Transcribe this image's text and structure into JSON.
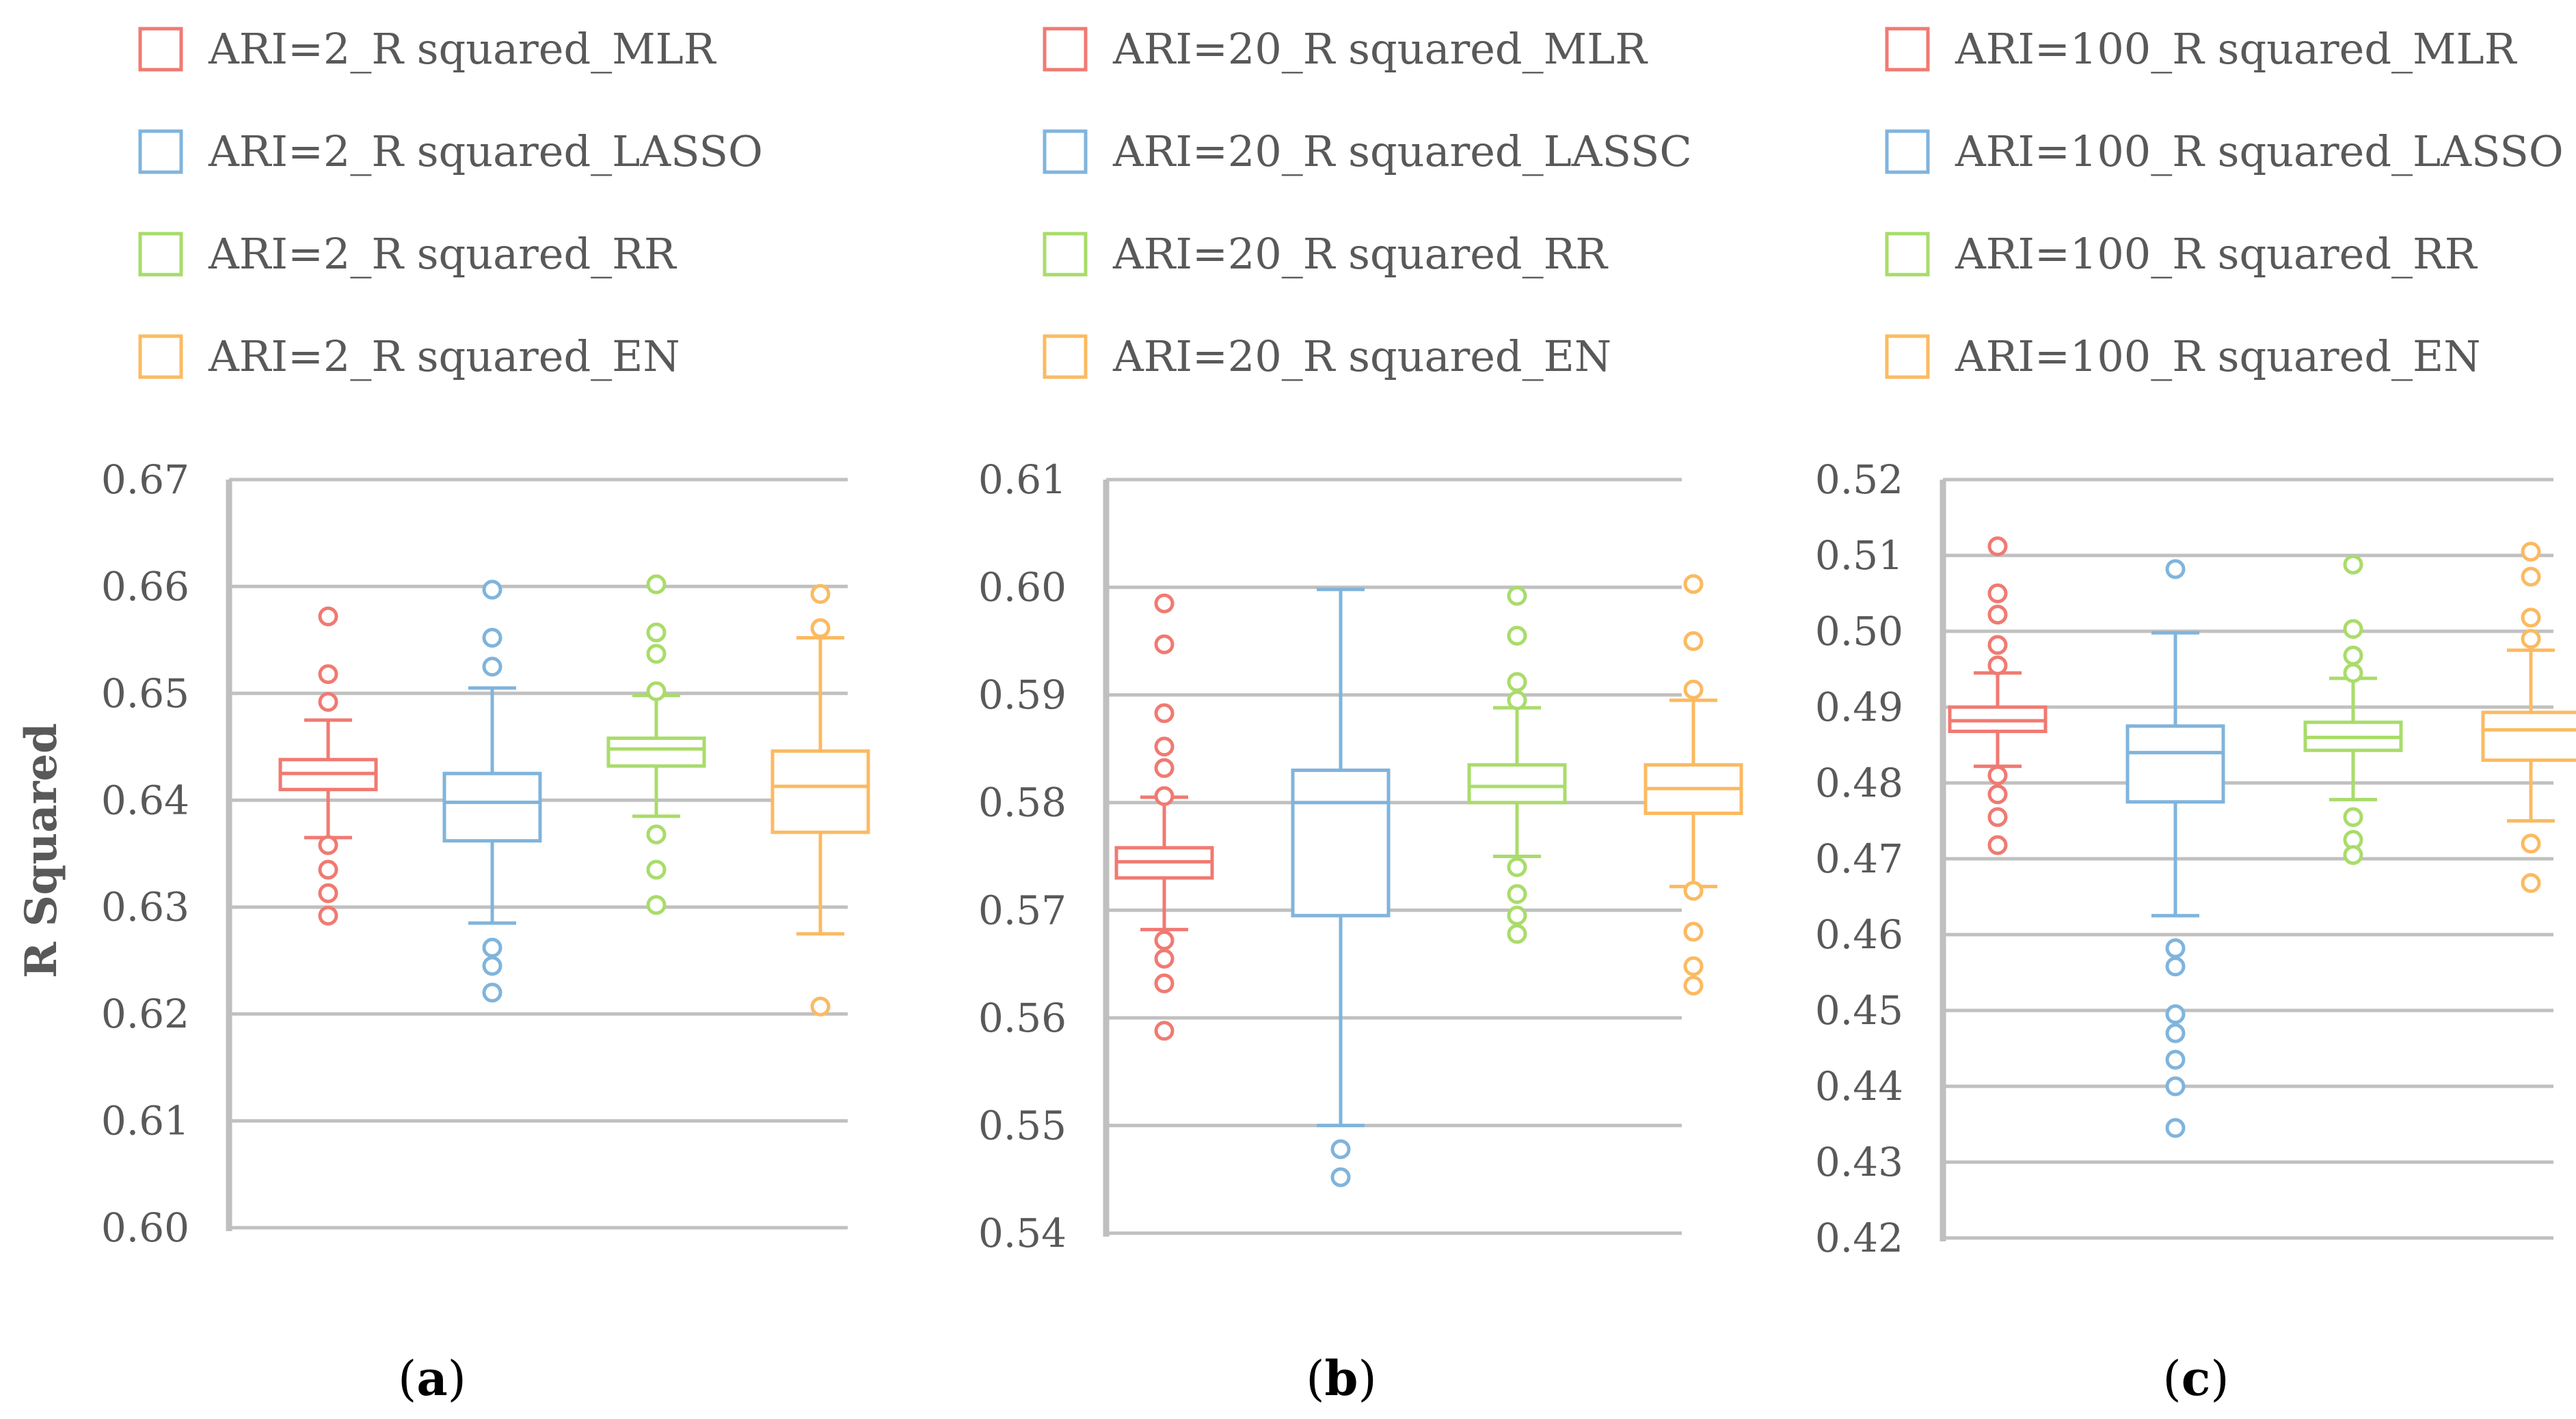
{
  "colors": {
    "MLR": "#F07A72",
    "LASSO": "#80B4DC",
    "RR": "#A9DC6A",
    "EN": "#FBBA62",
    "grid": "#C0C0C0",
    "axis": "#BFBFBF",
    "text": "#595959"
  },
  "figure": {
    "ylabel": "R Squared"
  },
  "chart_data": [
    {
      "type": "box",
      "panel_label": "(a)",
      "panel_letter": "a",
      "legend": [
        "ARI=2_R squared_MLR",
        "ARI=2_R squared_LASSO",
        "ARI=2_R squared_RR",
        "ARI=2_R squared_EN"
      ],
      "ylim": [
        0.6,
        0.67
      ],
      "yticks": [
        "0.60",
        "0.61",
        "0.62",
        "0.63",
        "0.64",
        "0.65",
        "0.66",
        "0.67"
      ],
      "grid": true,
      "legend_position": "top",
      "series": [
        {
          "key": "MLR",
          "whisker_low": 0.6365,
          "q1": 0.641,
          "median": 0.6425,
          "q3": 0.6438,
          "whisker_high": 0.6475,
          "outliers": [
            0.6572,
            0.6518,
            0.6492,
            0.6358,
            0.6335,
            0.6313,
            0.6292
          ]
        },
        {
          "key": "LASSO",
          "whisker_low": 0.6285,
          "q1": 0.6362,
          "median": 0.6398,
          "q3": 0.6425,
          "whisker_high": 0.6505,
          "outliers": [
            0.6597,
            0.6552,
            0.6525,
            0.6262,
            0.6245,
            0.622
          ]
        },
        {
          "key": "RR",
          "whisker_low": 0.6385,
          "q1": 0.6432,
          "median": 0.6448,
          "q3": 0.6458,
          "whisker_high": 0.6498,
          "outliers": [
            0.6602,
            0.6557,
            0.6537,
            0.6502,
            0.6368,
            0.6335,
            0.6302
          ]
        },
        {
          "key": "EN",
          "whisker_low": 0.6275,
          "q1": 0.637,
          "median": 0.6413,
          "q3": 0.6446,
          "whisker_high": 0.6552,
          "outliers": [
            0.6593,
            0.6561,
            0.6207
          ]
        }
      ]
    },
    {
      "type": "box",
      "panel_label": "(b)",
      "panel_letter": "b",
      "legend": [
        "ARI=20_R squared_MLR",
        "ARI=20_R squared_LASSC",
        "ARI=20_R squared_RR",
        "ARI=20_R squared_EN"
      ],
      "ylim": [
        0.54,
        0.61
      ],
      "yticks": [
        "0.54",
        "0.55",
        "0.56",
        "0.57",
        "0.58",
        "0.59",
        "0.60",
        "0.61"
      ],
      "grid": true,
      "legend_position": "top",
      "series": [
        {
          "key": "MLR",
          "whisker_low": 0.5682,
          "q1": 0.573,
          "median": 0.5745,
          "q3": 0.5758,
          "whisker_high": 0.5805,
          "outliers": [
            0.5985,
            0.5947,
            0.5883,
            0.5852,
            0.5832,
            0.5806,
            0.5672,
            0.5655,
            0.5632,
            0.5588
          ]
        },
        {
          "key": "LASSO",
          "whisker_low": 0.55,
          "q1": 0.5695,
          "median": 0.58,
          "q3": 0.583,
          "whisker_high": 0.5998,
          "outliers": [
            0.5478,
            0.5452
          ]
        },
        {
          "key": "RR",
          "whisker_low": 0.575,
          "q1": 0.58,
          "median": 0.5815,
          "q3": 0.5835,
          "whisker_high": 0.5888,
          "outliers": [
            0.5992,
            0.5955,
            0.5912,
            0.5895,
            0.574,
            0.5715,
            0.5695,
            0.5678
          ]
        },
        {
          "key": "EN",
          "whisker_low": 0.5722,
          "q1": 0.579,
          "median": 0.5813,
          "q3": 0.5835,
          "whisker_high": 0.5895,
          "outliers": [
            0.6003,
            0.595,
            0.5905,
            0.5718,
            0.568,
            0.5648,
            0.563
          ]
        }
      ]
    },
    {
      "type": "box",
      "panel_label": "(c)",
      "panel_letter": "c",
      "legend": [
        "ARI=100_R squared_MLR",
        "ARI=100_R squared_LASSO",
        "ARI=100_R squared_RR",
        "ARI=100_R squared_EN"
      ],
      "ylim": [
        0.42,
        0.52
      ],
      "yticks": [
        "0.42",
        "0.43",
        "0.44",
        "0.45",
        "0.46",
        "0.47",
        "0.48",
        "0.49",
        "0.50",
        "0.51",
        "0.52"
      ],
      "grid": true,
      "legend_position": "top",
      "series": [
        {
          "key": "MLR",
          "whisker_low": 0.4822,
          "q1": 0.4868,
          "median": 0.4882,
          "q3": 0.49,
          "whisker_high": 0.4945,
          "outliers": [
            0.5112,
            0.505,
            0.5022,
            0.4982,
            0.4955,
            0.481,
            0.4785,
            0.4755,
            0.4718
          ]
        },
        {
          "key": "LASSO",
          "whisker_low": 0.4625,
          "q1": 0.4775,
          "median": 0.484,
          "q3": 0.4875,
          "whisker_high": 0.4998,
          "outliers": [
            0.5082,
            0.4582,
            0.4558,
            0.4495,
            0.447,
            0.4435,
            0.44,
            0.4345
          ]
        },
        {
          "key": "RR",
          "whisker_low": 0.4778,
          "q1": 0.4843,
          "median": 0.486,
          "q3": 0.488,
          "whisker_high": 0.4938,
          "outliers": [
            0.5088,
            0.5003,
            0.4968,
            0.4945,
            0.4755,
            0.4725,
            0.4705
          ]
        },
        {
          "key": "EN",
          "whisker_low": 0.475,
          "q1": 0.483,
          "median": 0.487,
          "q3": 0.4893,
          "whisker_high": 0.4975,
          "outliers": [
            0.5105,
            0.5072,
            0.5018,
            0.499,
            0.472,
            0.4668
          ]
        }
      ]
    }
  ]
}
